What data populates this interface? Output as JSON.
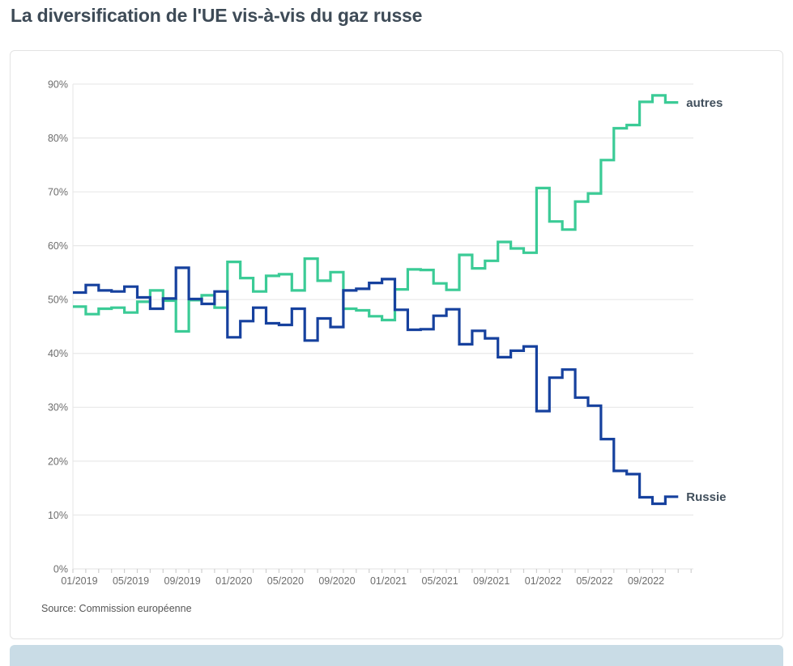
{
  "page": {
    "title": "La diversification de l'UE vis-à-vis du gaz russe",
    "source": "Source: Commission européenne"
  },
  "chart_data": {
    "type": "line",
    "subtype": "step-after-monthly",
    "title": "La diversification de l'UE vis-à-vis du gaz russe",
    "xlabel": "",
    "ylabel": "",
    "ylim": [
      0,
      90
    ],
    "grid": "horizontal",
    "legend_position": "end-of-line-labels",
    "y_ticks": [
      "0%",
      "10%",
      "20%",
      "30%",
      "40%",
      "50%",
      "60%",
      "70%",
      "80%",
      "90%"
    ],
    "x_ticks": [
      {
        "label": "01/2019",
        "month_index": 0
      },
      {
        "label": "05/2019",
        "month_index": 4
      },
      {
        "label": "09/2019",
        "month_index": 8
      },
      {
        "label": "01/2020",
        "month_index": 12
      },
      {
        "label": "05/2020",
        "month_index": 16
      },
      {
        "label": "09/2020",
        "month_index": 20
      },
      {
        "label": "01/2021",
        "month_index": 24
      },
      {
        "label": "05/2021",
        "month_index": 28
      },
      {
        "label": "09/2021",
        "month_index": 32
      },
      {
        "label": "01/2022",
        "month_index": 36
      },
      {
        "label": "05/2022",
        "month_index": 40
      },
      {
        "label": "09/2022",
        "month_index": 44
      }
    ],
    "categories": [
      "01/2019",
      "02/2019",
      "03/2019",
      "04/2019",
      "05/2019",
      "06/2019",
      "07/2019",
      "08/2019",
      "09/2019",
      "10/2019",
      "11/2019",
      "12/2019",
      "01/2020",
      "02/2020",
      "03/2020",
      "04/2020",
      "05/2020",
      "06/2020",
      "07/2020",
      "08/2020",
      "09/2020",
      "10/2020",
      "11/2020",
      "12/2020",
      "01/2021",
      "02/2021",
      "03/2021",
      "04/2021",
      "05/2021",
      "06/2021",
      "07/2021",
      "08/2021",
      "09/2021",
      "10/2021",
      "11/2021",
      "12/2021",
      "01/2022",
      "02/2022",
      "03/2022",
      "04/2022",
      "05/2022",
      "06/2022",
      "07/2022",
      "08/2022",
      "09/2022",
      "10/2022",
      "11/2022"
    ],
    "series": [
      {
        "name": "autres",
        "color": "#3bcb96",
        "values": [
          48.7,
          47.3,
          48.3,
          48.5,
          47.6,
          49.6,
          51.7,
          49.8,
          44.1,
          49.9,
          50.8,
          48.5,
          57.0,
          54.0,
          51.5,
          54.4,
          54.7,
          51.7,
          57.6,
          53.5,
          55.1,
          48.3,
          48.0,
          46.9,
          46.2,
          51.9,
          55.6,
          55.5,
          53.0,
          51.8,
          58.3,
          55.8,
          57.2,
          60.7,
          59.5,
          58.7,
          70.7,
          64.5,
          63.0,
          68.2,
          69.7,
          75.9,
          81.8,
          82.4,
          86.7,
          87.9,
          86.6
        ]
      },
      {
        "name": "Russie",
        "color": "#16419e",
        "values": [
          51.3,
          52.7,
          51.7,
          51.5,
          52.4,
          50.4,
          48.3,
          50.2,
          55.9,
          50.1,
          49.2,
          51.5,
          43.0,
          46.0,
          48.5,
          45.6,
          45.3,
          48.3,
          42.4,
          46.5,
          44.9,
          51.7,
          52.0,
          53.1,
          53.8,
          48.1,
          44.4,
          44.5,
          47.0,
          48.2,
          41.7,
          44.2,
          42.8,
          39.3,
          40.5,
          41.3,
          29.3,
          35.5,
          37.0,
          31.8,
          30.3,
          24.1,
          18.2,
          17.6,
          13.3,
          12.1,
          13.4
        ]
      }
    ]
  },
  "colors": {
    "grid": "#e8e8e8",
    "axis_tick": "#cfcfcf",
    "axis_text": "#6d6d6d",
    "series_label_text": "#414f5c",
    "footer_band": "#c9dce6"
  }
}
